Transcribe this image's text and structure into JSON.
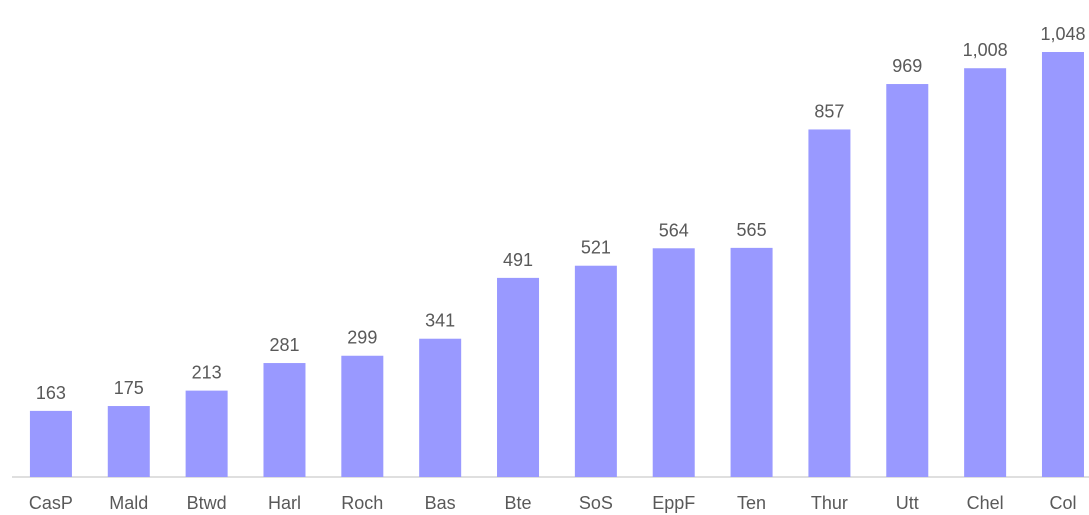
{
  "chart_data": {
    "type": "bar",
    "categories": [
      "CasP",
      "Mald",
      "Btwd",
      "Harl",
      "Roch",
      "Bas",
      "Bte",
      "SoS",
      "EppF",
      "Ten",
      "Thur",
      "Utt",
      "Chel",
      "Col"
    ],
    "values": [
      163,
      175,
      213,
      281,
      299,
      341,
      491,
      521,
      564,
      565,
      857,
      969,
      1008,
      1048
    ],
    "value_labels": [
      "163",
      "175",
      "213",
      "281",
      "299",
      "341",
      "491",
      "521",
      "564",
      "565",
      "857",
      "969",
      "1,008",
      "1,048"
    ],
    "color": "#9999ff"
  }
}
